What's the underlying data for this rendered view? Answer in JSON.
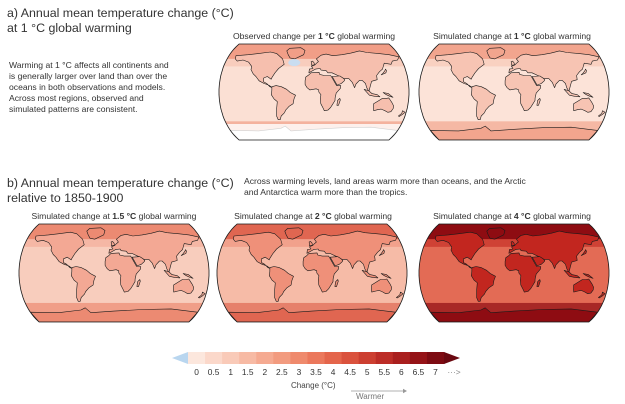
{
  "section_a": {
    "title_line1": "a) Annual mean temperature change (°C)",
    "title_line2": "at 1 °C global warming",
    "description": [
      "Warming at 1 °C affects all continents and",
      "is generally larger over land than over the",
      "oceans in both observations and models.",
      "Across most regions, observed and",
      "simulated patterns are consistent."
    ],
    "maps": [
      {
        "label_pre": "Observed change per ",
        "label_bold": "1 °C",
        "label_post": " global warming",
        "level": 1,
        "land": "#f6bfae",
        "ocean": "#fbe0d4",
        "arctic": "#f19e87",
        "observed": true
      },
      {
        "label_pre": "Simulated change at ",
        "label_bold": "1 °C",
        "label_post": " global warming",
        "level": 1,
        "land": "#f7c4b3",
        "ocean": "#fce3d8",
        "arctic": "#f2a58e",
        "observed": false
      }
    ]
  },
  "section_b": {
    "title_line1": "b) Annual mean temperature change (°C)",
    "title_line2": "relative to 1850-1900",
    "description": [
      "Across warming levels, land areas warm more than oceans, and the Arctic",
      "and Antarctica warm more than the tropics."
    ],
    "maps": [
      {
        "label_pre": "Simulated change at ",
        "label_bold": "1.5 °C",
        "label_post": " global warming",
        "level": 1.5,
        "land": "#f3a894",
        "ocean": "#f8cdbd",
        "arctic": "#ec8a72",
        "observed": false
      },
      {
        "label_pre": "Simulated change at ",
        "label_bold": "2 °C",
        "label_post": " global warming",
        "level": 2,
        "land": "#ef9079",
        "ocean": "#f6bba7",
        "arctic": "#e06651",
        "observed": false
      },
      {
        "label_pre": "Simulated change at ",
        "label_bold": "4 °C",
        "label_post": " global warming",
        "level": 4,
        "land": "#c2261f",
        "ocean": "#e36b55",
        "arctic": "#8e0c12",
        "observed": false
      }
    ]
  },
  "colorbar": {
    "ticks": [
      "0",
      "0.5",
      "1",
      "1.5",
      "2",
      "2.5",
      "3",
      "3.5",
      "4",
      "4.5",
      "5",
      "5.5",
      "6",
      "6.5",
      "7"
    ],
    "more": "···>",
    "caption": "Change (°C)",
    "warmer": "Warmer",
    "colors": [
      "#fce7dd",
      "#fbd8ca",
      "#f9cab8",
      "#f7baa4",
      "#f5aa91",
      "#f29b7f",
      "#ef8a6d",
      "#eb785c",
      "#e4654b",
      "#da523d",
      "#cc3f31",
      "#bc2d27",
      "#a91f1e",
      "#951317",
      "#7d0b12"
    ],
    "below_color": "#b9d6ef"
  }
}
